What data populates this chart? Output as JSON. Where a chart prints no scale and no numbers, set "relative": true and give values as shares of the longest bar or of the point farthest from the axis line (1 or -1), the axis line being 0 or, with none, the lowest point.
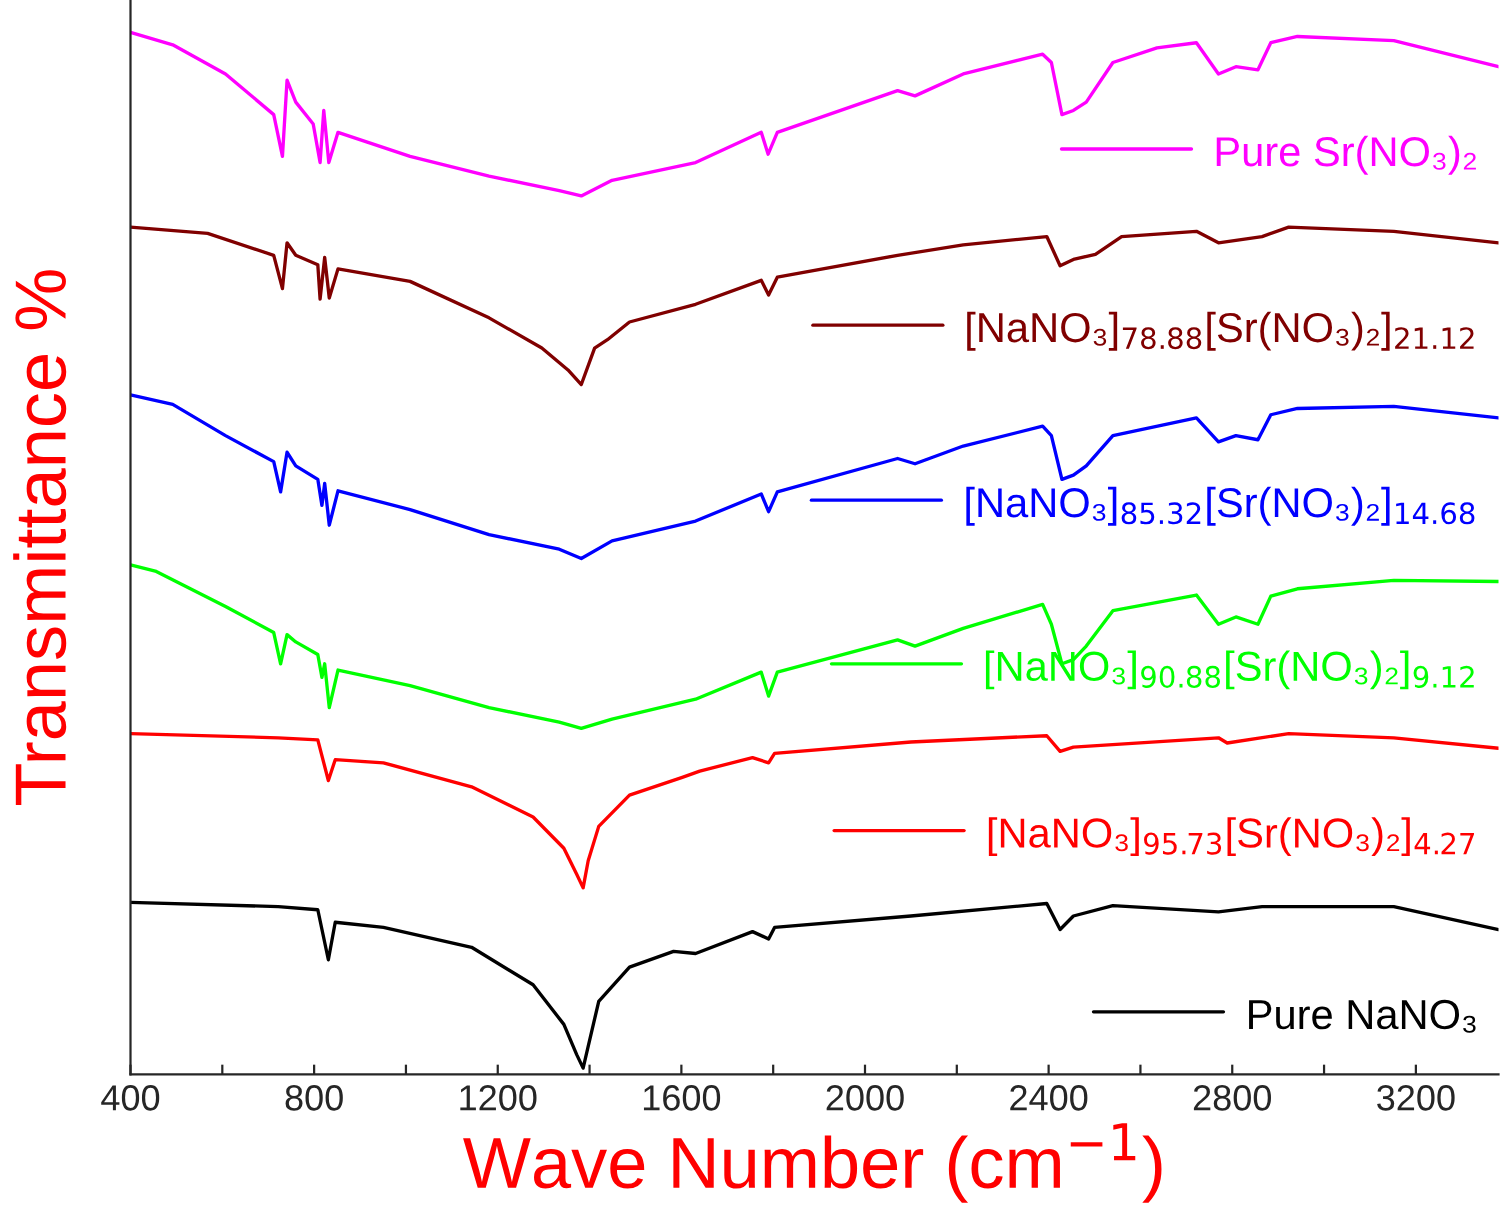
{
  "chart_data": {
    "type": "line",
    "relative": true,
    "xlabel": "Wave Number (cm$^{−1}$)",
    "ylabel": "Transmittance %",
    "xlim": [
      400,
      3380
    ],
    "xticks": [
      400,
      {
        "value": 600,
        "label": null
      },
      800,
      {
        "value": 1000,
        "label": null
      },
      1200,
      {
        "value": 1400,
        "label": null
      },
      1600,
      {
        "value": 1800,
        "label": null
      },
      2000,
      {
        "value": 2200,
        "label": null
      },
      2400,
      {
        "value": 2600,
        "label": null
      },
      2800,
      {
        "value": 3000,
        "label": null
      },
      3200
    ],
    "tick_labels": "x",
    "grid": false,
    "legend": "right",
    "marker": "none",
    "line_style": "solid",
    "series": [
      {
        "name": "Pure Sr(NO₃)₂",
        "color": "#ff00ff",
        "x": [
          400,
          492,
          607,
          712,
          731,
          741,
          760,
          798,
          813,
          821,
          832,
          852,
          1009,
          1181,
          1334,
          1382,
          1449,
          1631,
          1774,
          1789,
          1809,
          2071,
          2109,
          2214,
          2387,
          2406,
          2429,
          2454,
          2482,
          2540,
          2636,
          2722,
          2770,
          2808,
          2856,
          2884,
          2942,
          3152,
          3380
        ],
        "values": [
          1.0,
          0.988,
          0.96,
          0.921,
          0.881,
          0.954,
          0.933,
          0.912,
          0.875,
          0.925,
          0.875,
          0.904,
          0.881,
          0.862,
          0.848,
          0.843,
          0.858,
          0.875,
          0.904,
          0.883,
          0.904,
          0.944,
          0.939,
          0.96,
          0.979,
          0.971,
          0.921,
          0.925,
          0.933,
          0.971,
          0.985,
          0.99,
          0.96,
          0.967,
          0.964,
          0.99,
          0.996,
          0.992,
          0.967
        ]
      },
      {
        "name": "[NaNO₃]$_{78.88}$[Sr(NO₃)₂]$_{21.12}$",
        "color": "#800000",
        "x": [
          400,
          568,
          712,
          731,
          741,
          760,
          808,
          813,
          823,
          833,
          852,
          1009,
          1181,
          1296,
          1353,
          1382,
          1411,
          1439,
          1487,
          1631,
          1774,
          1790,
          1809,
          2071,
          2214,
          2396,
          2425,
          2454,
          2502,
          2559,
          2722,
          2770,
          2865,
          2923,
          3152,
          3380
        ],
        "values": [
          0.813,
          0.807,
          0.786,
          0.754,
          0.798,
          0.786,
          0.777,
          0.744,
          0.784,
          0.745,
          0.773,
          0.761,
          0.726,
          0.697,
          0.676,
          0.662,
          0.697,
          0.705,
          0.722,
          0.739,
          0.762,
          0.748,
          0.765,
          0.786,
          0.796,
          0.804,
          0.776,
          0.782,
          0.787,
          0.804,
          0.809,
          0.798,
          0.804,
          0.813,
          0.809,
          0.798
        ]
      },
      {
        "name": "[NaNO₃]$_{85.32}$[Sr(NO₃)₂]$_{14.68}$",
        "color": "#0000ff",
        "x": [
          400,
          492,
          607,
          712,
          727,
          741,
          760,
          808,
          817,
          823,
          833,
          852,
          1009,
          1181,
          1334,
          1382,
          1449,
          1631,
          1774,
          1790,
          1809,
          2071,
          2109,
          2214,
          2387,
          2406,
          2429,
          2454,
          2482,
          2540,
          2722,
          2770,
          2808,
          2856,
          2884,
          2942,
          3152,
          3380
        ],
        "values": [
          0.652,
          0.643,
          0.613,
          0.588,
          0.559,
          0.597,
          0.584,
          0.571,
          0.546,
          0.567,
          0.527,
          0.56,
          0.542,
          0.518,
          0.504,
          0.495,
          0.512,
          0.531,
          0.557,
          0.54,
          0.559,
          0.591,
          0.586,
          0.603,
          0.622,
          0.613,
          0.571,
          0.575,
          0.584,
          0.613,
          0.63,
          0.607,
          0.613,
          0.609,
          0.633,
          0.639,
          0.641,
          0.63
        ]
      },
      {
        "name": "[NaNO₃]$_{90.88}$[Sr(NO₃)₂]$_{9.12}$",
        "color": "#00ff00",
        "x": [
          400,
          454,
          607,
          712,
          727,
          741,
          760,
          808,
          817,
          823,
          833,
          852,
          1009,
          1181,
          1334,
          1382,
          1449,
          1631,
          1774,
          1790,
          1809,
          2071,
          2109,
          2214,
          2387,
          2406,
          2429,
          2454,
          2482,
          2540,
          2722,
          2770,
          2808,
          2856,
          2884,
          2942,
          3152,
          3380
        ],
        "values": [
          0.489,
          0.483,
          0.449,
          0.424,
          0.394,
          0.422,
          0.415,
          0.403,
          0.381,
          0.394,
          0.352,
          0.388,
          0.373,
          0.352,
          0.338,
          0.332,
          0.341,
          0.36,
          0.386,
          0.363,
          0.386,
          0.417,
          0.411,
          0.428,
          0.451,
          0.432,
          0.394,
          0.398,
          0.411,
          0.445,
          0.46,
          0.432,
          0.439,
          0.432,
          0.459,
          0.466,
          0.474,
          0.473
        ]
      },
      {
        "name": "[NaNO₃]$_{95.73}$[Sr(NO₃)₂]$_{4.27}$",
        "color": "#ff0000",
        "x": [
          400,
          722,
          808,
          831,
          846,
          951,
          1143,
          1277,
          1344,
          1372,
          1386,
          1397,
          1420,
          1487,
          1602,
          1640,
          1755,
          1790,
          1803,
          2100,
          2396,
          2425,
          2454,
          2770,
          2789,
          2923,
          3152,
          3380
        ],
        "values": [
          0.327,
          0.323,
          0.321,
          0.282,
          0.302,
          0.299,
          0.276,
          0.247,
          0.217,
          0.192,
          0.179,
          0.205,
          0.238,
          0.268,
          0.285,
          0.291,
          0.304,
          0.299,
          0.308,
          0.319,
          0.325,
          0.31,
          0.314,
          0.323,
          0.318,
          0.327,
          0.323,
          0.313
        ]
      },
      {
        "name": "Pure NaNO₃",
        "color": "#000000",
        "x": [
          400,
          722,
          808,
          831,
          846,
          951,
          1143,
          1277,
          1344,
          1372,
          1386,
          1397,
          1420,
          1487,
          1583,
          1631,
          1755,
          1790,
          1803,
          2100,
          2396,
          2425,
          2454,
          2540,
          2770,
          2865,
          3152,
          3380
        ],
        "values": [
          0.165,
          0.161,
          0.158,
          0.11,
          0.146,
          0.141,
          0.122,
          0.086,
          0.048,
          0.019,
          0.006,
          0.027,
          0.07,
          0.103,
          0.118,
          0.116,
          0.137,
          0.13,
          0.141,
          0.152,
          0.164,
          0.139,
          0.152,
          0.162,
          0.156,
          0.161,
          0.161,
          0.139
        ]
      }
    ]
  }
}
